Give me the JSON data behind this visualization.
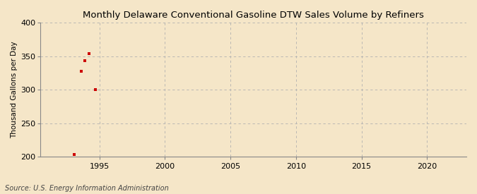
{
  "title": "Monthly Delaware Conventional Gasoline DTW Sales Volume by Refiners",
  "ylabel": "Thousand Gallons per Day",
  "source": "Source: U.S. Energy Information Administration",
  "background_color": "#f5e6c8",
  "plot_bg_color": "#f5e6c8",
  "data_color": "#cc0000",
  "xlim": [
    1990.5,
    2023
  ],
  "ylim": [
    200,
    400
  ],
  "yticks": [
    200,
    250,
    300,
    350,
    400
  ],
  "xticks": [
    1995,
    2000,
    2005,
    2010,
    2015,
    2020
  ],
  "data_x": [
    1993.1,
    1993.6,
    1993.9,
    1994.2,
    1994.7
  ],
  "data_y": [
    204,
    327,
    343,
    354,
    300
  ]
}
